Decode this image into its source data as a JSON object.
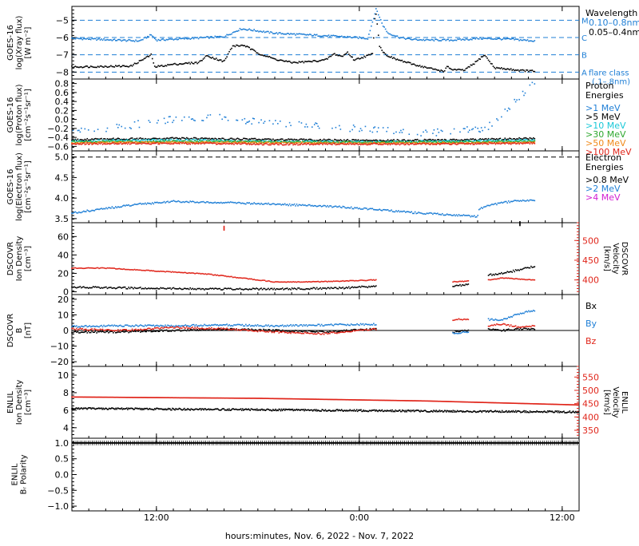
{
  "colors": {
    "blue": "#1f7fd6",
    "black": "#000000",
    "red": "#e0251a",
    "cyan": "#19c8d8",
    "green": "#2fa82f",
    "orange": "#f08a1a",
    "magenta": "#d21ed2"
  },
  "footer": {
    "xlabel": "hours:minutes, Nov.  6, 2022 - Nov.  7, 2022"
  },
  "time_axis": {
    "ticks": [
      "12:00",
      "0:00",
      "12:00"
    ],
    "range_hours": [
      -31,
      -1
    ],
    "tick_hours": [
      -26,
      -14,
      -2
    ],
    "note_units": "hours relative to 2022-11-07 12:00 UTC"
  },
  "chart_data": [
    {
      "id": "xray",
      "type": "scatter",
      "ylabel_lines": [
        "GOES-16",
        "log(Xray flux)",
        "[W m⁻²]"
      ],
      "ylim": [
        -8.4,
        -4.2
      ],
      "yticks": [
        "−5",
        "−6",
        "−7",
        "−8"
      ],
      "ytick_values": [
        -5,
        -6,
        -7,
        -8
      ],
      "dashed_lines": [
        -5,
        -6,
        -7,
        -8
      ],
      "flare_classes": [
        "M",
        "C",
        "B",
        "A"
      ],
      "legend_title": "Wavelength",
      "legend": [
        {
          "label": "0.10–0.8nm",
          "color": "#1f7fd6"
        },
        {
          "label": "0.05–0.4nm",
          "color": "#000000"
        }
      ],
      "flare_class_label": [
        "flare class",
        "(.1–.8nm)"
      ],
      "series": [
        {
          "name": "0.10–0.8nm",
          "color": "#1f7fd6",
          "x": [
            -31,
            -27,
            -26.3,
            -26,
            -24,
            -22,
            -21,
            -20.5,
            -19,
            -17,
            -15,
            -13.5,
            -13,
            -12.6,
            -12.3,
            -12,
            -11.6,
            -11,
            -10,
            -8.5,
            -7.5,
            -7,
            -5,
            -3.6
          ],
          "y": [
            -6.05,
            -6.2,
            -5.85,
            -6.15,
            -6.05,
            -5.95,
            -5.5,
            -5.55,
            -5.75,
            -5.85,
            -5.95,
            -6.05,
            -4.35,
            -5.3,
            -5.75,
            -5.85,
            -6.0,
            -6.1,
            -6.15,
            -6.15,
            -6.1,
            -6.05,
            -6.1,
            -6.2
          ]
        },
        {
          "name": "0.05–0.4nm",
          "color": "#000000",
          "x": [
            -31,
            -27.5,
            -26.3,
            -26.1,
            -25,
            -23.5,
            -23,
            -22,
            -21.5,
            -20.8,
            -20,
            -19,
            -18,
            -17,
            -16,
            -15.5,
            -15,
            -14.7,
            -14.3,
            -13.2,
            -13.1,
            -13,
            -12.8,
            -12.5,
            -12,
            -11,
            -10,
            -9,
            -8.8,
            -8.5,
            -7.8,
            -7.2,
            -6.6,
            -6,
            -5,
            -4.5,
            -3.6
          ],
          "y": [
            -7.7,
            -7.65,
            -7.0,
            -7.7,
            -7.55,
            -7.45,
            -7.05,
            -7.4,
            -6.5,
            -6.45,
            -6.9,
            -7.25,
            -7.45,
            -7.4,
            -7.3,
            -6.95,
            -7.1,
            -6.85,
            -7.3,
            -6.95,
            -5.0,
            -4.6,
            -6.5,
            -6.95,
            -7.2,
            -7.5,
            -7.75,
            -7.95,
            -7.7,
            -7.85,
            -7.9,
            -7.5,
            -7.0,
            -7.75,
            -7.85,
            -7.9,
            -7.95
          ]
        }
      ]
    },
    {
      "id": "proton",
      "type": "scatter",
      "ylabel_lines": [
        "GOES-16",
        "log(Proton flux)",
        "[cm⁻²s⁻¹sr⁻¹]"
      ],
      "ylim": [
        -0.7,
        0.9
      ],
      "yticks": [
        "0.8",
        "0.6",
        "0.4",
        "0.2",
        "0.0",
        "−0.2",
        "−0.4",
        "−0.6"
      ],
      "ytick_values": [
        0.8,
        0.6,
        0.4,
        0.2,
        0.0,
        -0.2,
        -0.4,
        -0.6
      ],
      "legend_title": "Proton Energies",
      "legend": [
        {
          "label": ">1 MeV",
          "color": "#1f7fd6"
        },
        {
          "label": ">5 MeV",
          "color": "#000000"
        },
        {
          "label": ">10 MeV",
          "color": "#19c8d8"
        },
        {
          "label": ">30 MeV",
          "color": "#2fa82f"
        },
        {
          "label": ">50 MeV",
          "color": "#f08a1a"
        },
        {
          "label": ">100 MeV",
          "color": "#e0251a"
        }
      ],
      "series": [
        {
          "name": ">1 MeV",
          "color": "#1f7fd6",
          "x": [
            -31,
            -28,
            -25,
            -22,
            -20,
            -17,
            -14,
            -12,
            -10,
            -8,
            -6.5,
            -5.5,
            -4.5,
            -3.6
          ],
          "y": [
            -0.3,
            -0.15,
            0.0,
            0.05,
            -0.05,
            -0.15,
            -0.2,
            -0.25,
            -0.3,
            -0.25,
            -0.2,
            0.15,
            0.5,
            0.85
          ]
        },
        {
          "name": ">5 MeV",
          "color": "#000000",
          "x": [
            -31,
            -25,
            -19,
            -13,
            -7,
            -3.6
          ],
          "y": [
            -0.45,
            -0.42,
            -0.45,
            -0.47,
            -0.45,
            -0.42
          ]
        },
        {
          "name": ">10 MeV",
          "color": "#19c8d8",
          "x": [
            -31,
            -25,
            -19,
            -13,
            -7,
            -3.6
          ],
          "y": [
            -0.48,
            -0.46,
            -0.49,
            -0.5,
            -0.48,
            -0.46
          ]
        },
        {
          "name": ">30 MeV",
          "color": "#2fa82f",
          "x": [
            -31,
            -25,
            -19,
            -13,
            -7,
            -3.6
          ],
          "y": [
            -0.5,
            -0.49,
            -0.5,
            -0.51,
            -0.5,
            -0.49
          ]
        },
        {
          "name": ">50 MeV",
          "color": "#f08a1a",
          "x": [
            -31,
            -25,
            -19,
            -13,
            -7,
            -3.6
          ],
          "y": [
            -0.52,
            -0.51,
            -0.52,
            -0.53,
            -0.52,
            -0.51
          ]
        },
        {
          "name": ">100 MeV",
          "color": "#e0251a",
          "x": [
            -31,
            -25,
            -19,
            -13,
            -7,
            -3.6
          ],
          "y": [
            -0.54,
            -0.53,
            -0.55,
            -0.55,
            -0.54,
            -0.53
          ]
        }
      ]
    },
    {
      "id": "electron",
      "type": "scatter",
      "ylabel_lines": [
        "GOES-16",
        "log(Electron flux)",
        "[cm⁻²s⁻¹sr⁻¹]"
      ],
      "ylim": [
        3.4,
        5.15
      ],
      "yticks": [
        "5.0",
        "4.5",
        "4.0",
        "3.5"
      ],
      "ytick_values": [
        5.0,
        4.5,
        4.0,
        3.5
      ],
      "dashed_lines": [
        5.0
      ],
      "legend_title": "Electron Energies",
      "legend": [
        {
          "label": ">0.8 MeV",
          "color": "#000000"
        },
        {
          "label": ">2 MeV",
          "color": "#1f7fd6"
        },
        {
          "label": ">4 MeV",
          "color": "#d21ed2"
        }
      ],
      "series": [
        {
          "name": ">2 MeV",
          "color": "#1f7fd6",
          "x": [
            -31,
            -29,
            -27,
            -25,
            -23,
            -21,
            -19,
            -17,
            -15,
            -13,
            -11,
            -9,
            -8,
            -7,
            -6.9,
            -6,
            -5,
            -3.6
          ],
          "y": [
            3.63,
            3.75,
            3.85,
            3.92,
            3.9,
            3.88,
            3.85,
            3.82,
            3.78,
            3.72,
            3.65,
            3.6,
            3.58,
            3.55,
            3.75,
            3.85,
            3.92,
            3.95
          ]
        }
      ]
    },
    {
      "id": "dscovr_density",
      "type": "scatter",
      "ylabel_lines": [
        "DSCOVR",
        "Ion Density",
        "[cm⁻³]"
      ],
      "ylim": [
        -3,
        75
      ],
      "yticks": [
        "60",
        "40",
        "20",
        "0"
      ],
      "ytick_values": [
        60,
        40,
        20,
        0
      ],
      "right_ylabel_lines": [
        "DSCOVR",
        "Velocity",
        "[km/s]"
      ],
      "right_ylim": [
        363,
        545
      ],
      "right_yticks": [
        "500",
        "450",
        "400"
      ],
      "right_ytick_values": [
        500,
        450,
        400
      ],
      "series": [
        {
          "name": "Density",
          "color": "#000000",
          "x": [
            -31,
            -27,
            -23,
            -19,
            -15,
            -13,
            -8.5,
            -7.5,
            -6.4,
            -5.5,
            -4.5,
            -3.6
          ],
          "y": [
            5,
            4,
            3,
            3,
            4,
            6,
            6,
            8,
            18,
            20,
            24,
            28
          ]
        },
        {
          "name": "Velocity",
          "color": "#e0251a",
          "axis": "right",
          "x": [
            -31,
            -29,
            -27,
            -25,
            -23,
            -21,
            -20,
            -19,
            -17,
            -15,
            -13,
            -8.5,
            -7.5,
            -6.4,
            -5.5,
            -4.5,
            -3.6
          ],
          "y": [
            430,
            430,
            425,
            420,
            415,
            405,
            400,
            395,
            395,
            397,
            400,
            395,
            397,
            400,
            405,
            402,
            400
          ]
        }
      ],
      "outliers": [
        {
          "x": -22,
          "y": 67,
          "color": "#e0251a"
        },
        {
          "x": -4.5,
          "y": 72,
          "color": "#000000"
        }
      ],
      "gaps": [
        [
          -13,
          -8.5
        ],
        [
          -7.5,
          -6.4
        ]
      ]
    },
    {
      "id": "dscovr_b",
      "type": "scatter",
      "ylabel_lines": [
        "DSCOVR",
        "B",
        "[nT]"
      ],
      "ylim": [
        -23,
        23
      ],
      "yticks": [
        "20",
        "10",
        "0",
        "−10",
        "−20"
      ],
      "ytick_values": [
        20,
        10,
        0,
        -10,
        -20
      ],
      "zero_line": true,
      "legend": [
        {
          "label": "Bx",
          "color": "#000000"
        },
        {
          "label": "By",
          "color": "#1f7fd6"
        },
        {
          "label": "Bz",
          "color": "#e0251a"
        }
      ],
      "series": [
        {
          "name": "Bx",
          "color": "#000000",
          "x": [
            -31,
            -28,
            -25,
            -22,
            -19,
            -16,
            -13,
            -8.5,
            -7.5,
            -6.4,
            -5.5,
            -4.5,
            -3.6
          ],
          "y": [
            -1,
            -1,
            0,
            1,
            0,
            -1,
            1,
            -1,
            0,
            1,
            0,
            1,
            1
          ]
        },
        {
          "name": "By",
          "color": "#1f7fd6",
          "x": [
            -31,
            -28,
            -25,
            -22,
            -19,
            -16,
            -13,
            -8.5,
            -7.5,
            -6.4,
            -5.5,
            -4.5,
            -3.6
          ],
          "y": [
            2.5,
            3,
            3,
            3.5,
            3,
            3.5,
            4,
            -2,
            -1,
            7,
            7,
            11,
            13
          ]
        },
        {
          "name": "Bz",
          "color": "#e0251a",
          "x": [
            -31,
            -28,
            -25,
            -22,
            -19,
            -16,
            -13,
            -8.5,
            -7.5,
            -6.4,
            -5.5,
            -4.5,
            -3.6
          ],
          "y": [
            1,
            0,
            2,
            1,
            -1,
            -2,
            1,
            7,
            7,
            3,
            4,
            2,
            3
          ]
        }
      ],
      "gaps": [
        [
          -13,
          -8.5
        ],
        [
          -7.5,
          -6.4
        ]
      ]
    },
    {
      "id": "enlil_density",
      "type": "line",
      "ylabel_lines": [
        "ENLIL",
        "Ion Density",
        "[cm⁻³]"
      ],
      "ylim": [
        2.8,
        11
      ],
      "yticks": [
        "10",
        "8",
        "6",
        "4"
      ],
      "ytick_values": [
        10,
        8,
        6,
        4
      ],
      "right_ylabel_lines": [
        "ENLIL",
        "Velocity",
        "[km/s]"
      ],
      "right_ylim": [
        320,
        590
      ],
      "right_yticks": [
        "550",
        "500",
        "450",
        "400",
        "350"
      ],
      "right_ytick_values": [
        550,
        500,
        450,
        400,
        350
      ],
      "series": [
        {
          "name": "Density",
          "color": "#000000",
          "x": [
            -31,
            -20,
            -10,
            -1
          ],
          "y": [
            6.2,
            6.05,
            5.9,
            5.8
          ]
        },
        {
          "name": "Velocity",
          "color": "#e0251a",
          "axis": "right",
          "x": [
            -31,
            -20,
            -10,
            -1
          ],
          "y": [
            475,
            470,
            460,
            445
          ]
        }
      ]
    },
    {
      "id": "enlil_polarity",
      "type": "line",
      "ylabel_lines": [
        "ENLIL",
        "Bᵣ Polarity"
      ],
      "ylim": [
        -1.15,
        1.15
      ],
      "yticks": [
        "1.0",
        "0.5",
        "0.0",
        "−0.5",
        "−1.0"
      ],
      "ytick_values": [
        1.0,
        0.5,
        0.0,
        -0.5,
        -1.0
      ],
      "series": [
        {
          "name": "Polarity",
          "color": "#000000",
          "x": [
            -31,
            -1
          ],
          "y": [
            1.0,
            1.0
          ]
        }
      ]
    }
  ]
}
